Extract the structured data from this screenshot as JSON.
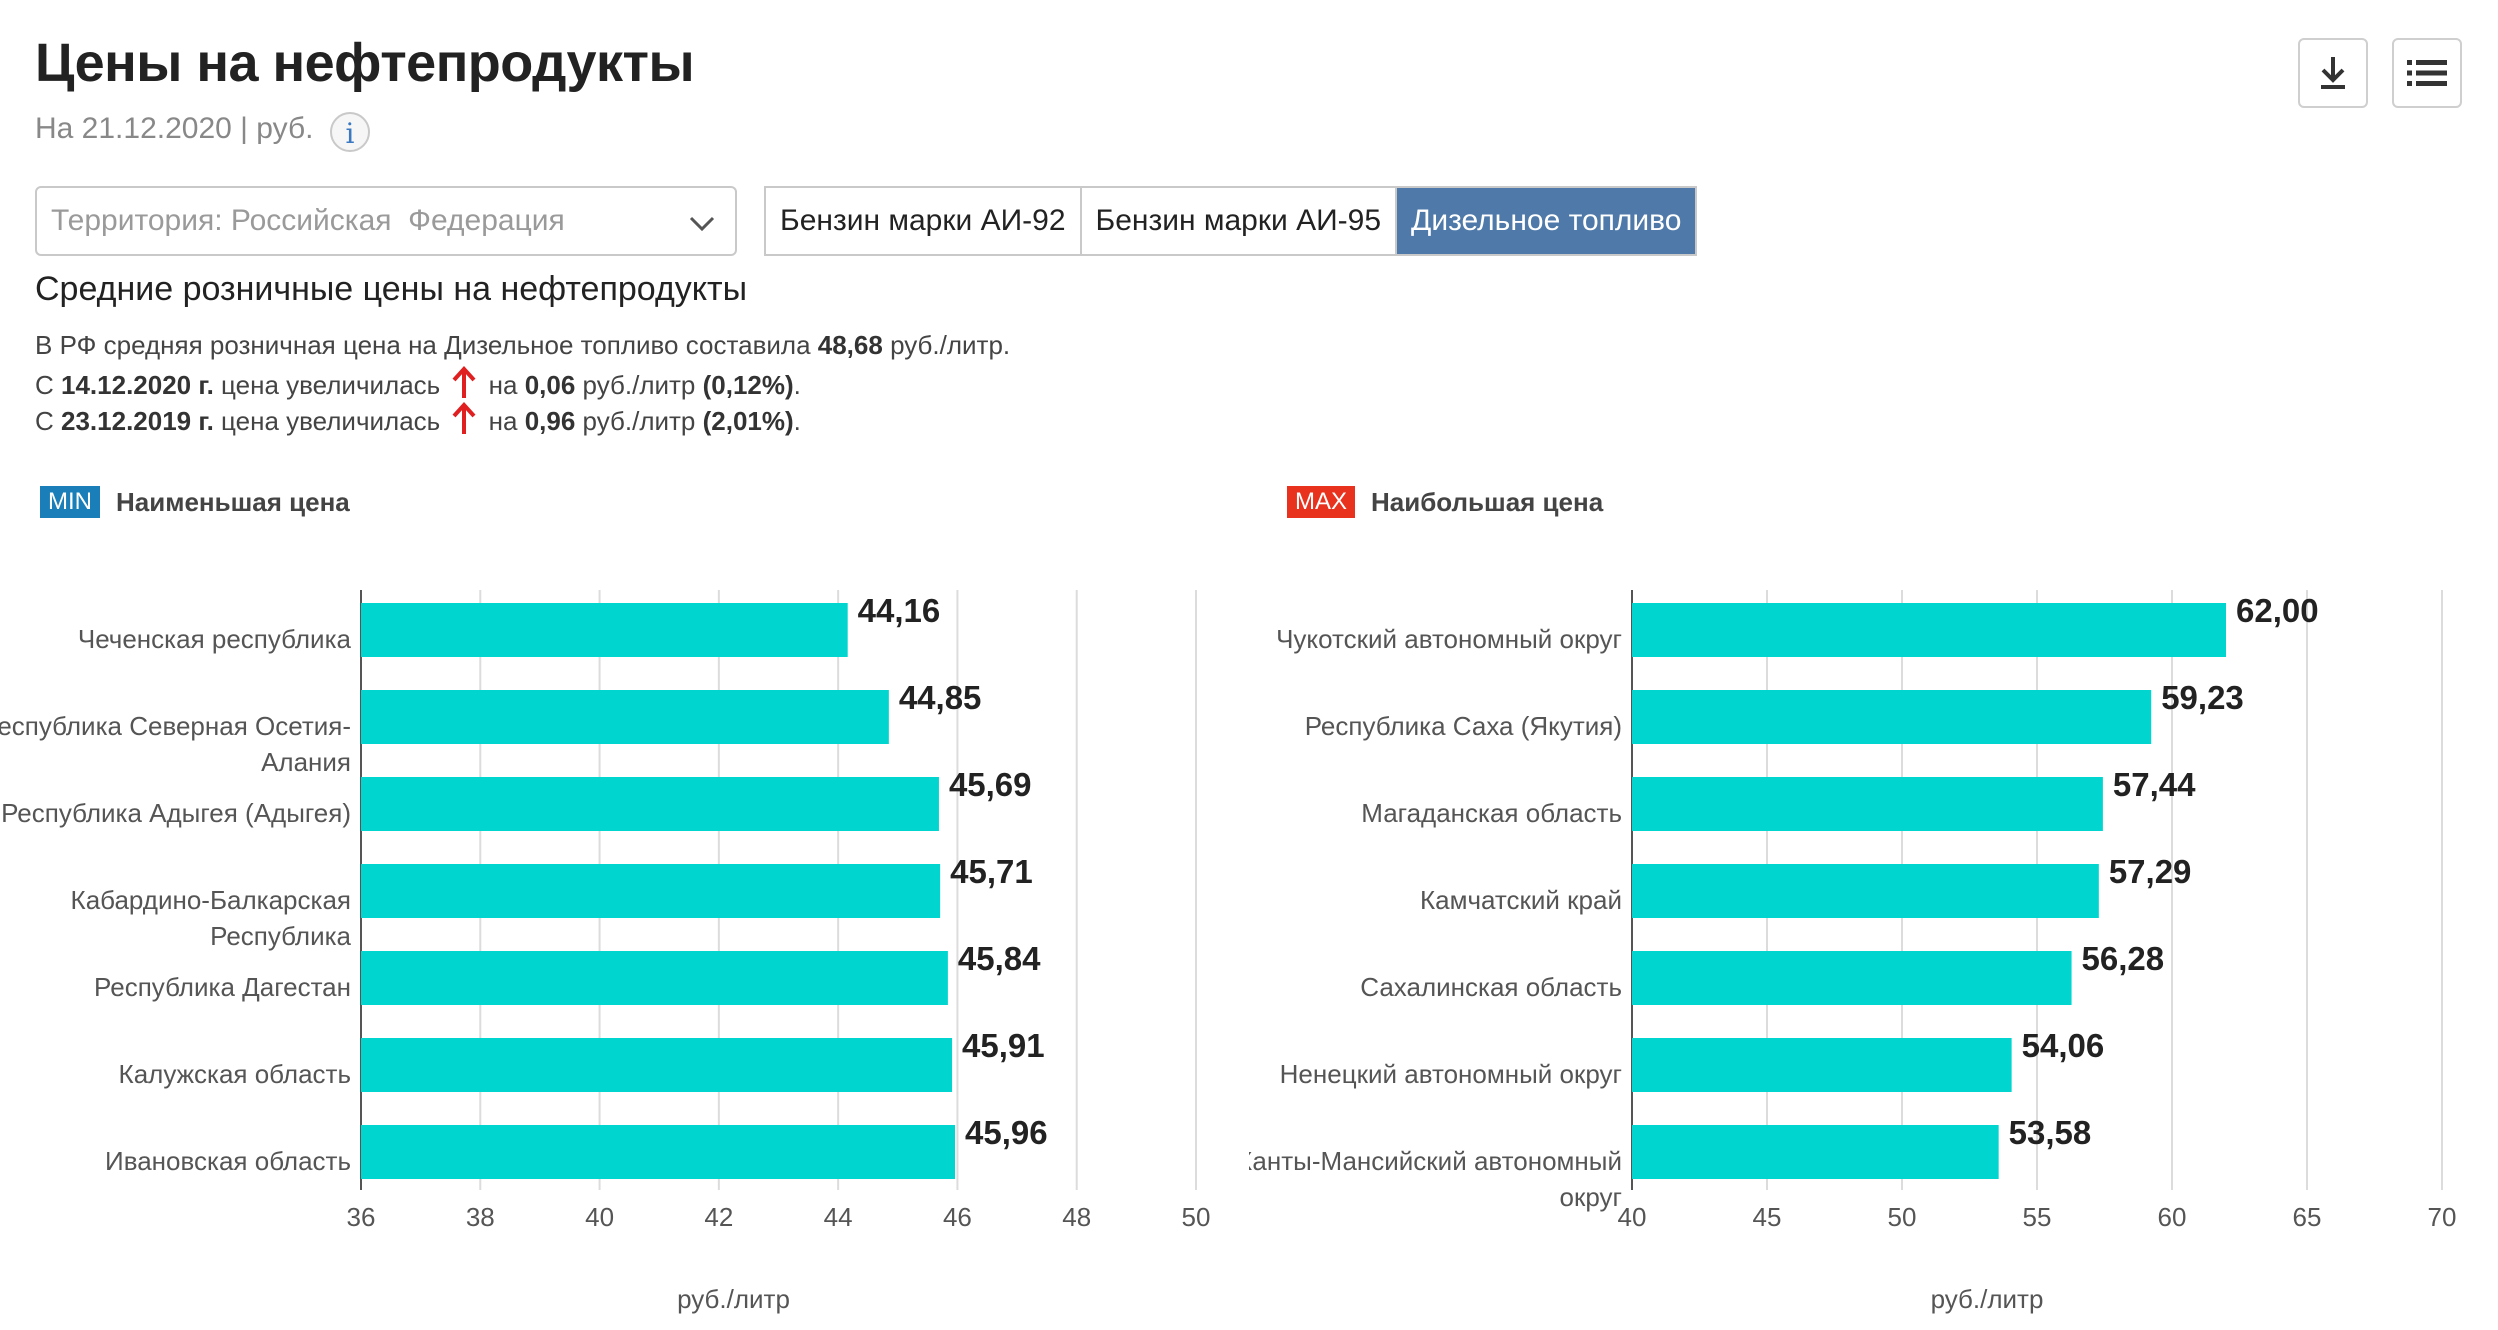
{
  "header": {
    "title": "Цены на нефтепродукты",
    "subtitle": "На 21.12.2020 | руб.",
    "info_icon": "info-icon",
    "download_icon": "download-icon",
    "menu_icon": "list-menu-icon"
  },
  "filters": {
    "territory_value": "Территория: Российская  Федерация",
    "tabs": [
      {
        "label": "Бензин марки АИ-92",
        "active": false
      },
      {
        "label": "Бензин марки АИ-95",
        "active": false
      },
      {
        "label": "Дизельное топливо",
        "active": true
      }
    ]
  },
  "summary": {
    "title": "Средние розничные цены на нефтепродукты",
    "line1": {
      "prefix": "В РФ средняя розничная цена на Дизельное топливо составила ",
      "value": "48,68",
      "suffix": " руб./литр."
    },
    "line2": {
      "prefix": "С ",
      "date": "14.12.2020 г.",
      "mid": " цена увеличилась ",
      "after_arrow": " на ",
      "value": "0,06",
      "unit": " руб./литр ",
      "pct": "(0,12%)",
      "end": "."
    },
    "line3": {
      "prefix": "С ",
      "date": "23.12.2019 г.",
      "mid": " цена увеличилась ",
      "after_arrow": " на ",
      "value": "0,96",
      "unit": " руб./литр ",
      "pct": "(2,01%)",
      "end": "."
    },
    "arrow_color": "#e02020"
  },
  "colors": {
    "bar": "#00d5cf",
    "min_badge": "#1a7fb8",
    "max_badge": "#e8321e",
    "active_tab": "#4e79a8"
  },
  "chart_data": [
    {
      "type": "bar",
      "orientation": "horizontal",
      "badge": "MIN",
      "title": "Наименьшая цена",
      "xlabel": "руб./литр",
      "xlim": [
        36,
        50
      ],
      "xticks": [
        36,
        38,
        40,
        42,
        44,
        46,
        48,
        50
      ],
      "grid": true,
      "categories": [
        [
          "Чеченская республика"
        ],
        [
          "Республика Северная Осетия-",
          "Алания"
        ],
        [
          "Республика Адыгея (Адыгея)"
        ],
        [
          "Кабардино-Балкарская",
          "Республика"
        ],
        [
          "Республика Дагестан"
        ],
        [
          "Калужская область"
        ],
        [
          "Ивановская область"
        ]
      ],
      "values": [
        44.16,
        44.85,
        45.69,
        45.71,
        45.84,
        45.91,
        45.96
      ],
      "value_labels": [
        "44,16",
        "44,85",
        "45,69",
        "45,71",
        "45,84",
        "45,91",
        "45,96"
      ]
    },
    {
      "type": "bar",
      "orientation": "horizontal",
      "badge": "MAX",
      "title": "Наибольшая цена",
      "xlabel": "руб./литр",
      "xlim": [
        40,
        70
      ],
      "xticks": [
        40,
        45,
        50,
        55,
        60,
        65,
        70
      ],
      "grid": true,
      "categories": [
        [
          "Чукотский автономный округ"
        ],
        [
          "Республика Саха (Якутия)"
        ],
        [
          "Магаданская область"
        ],
        [
          "Камчатский край"
        ],
        [
          "Сахалинская область"
        ],
        [
          "Ненецкий автономный округ"
        ],
        [
          "Ханты-Мансийский автономный",
          "округ"
        ]
      ],
      "values": [
        62.0,
        59.23,
        57.44,
        57.29,
        56.28,
        54.06,
        53.58
      ],
      "value_labels": [
        "62,00",
        "59,23",
        "57,44",
        "57,29",
        "56,28",
        "54,06",
        "53,58"
      ]
    }
  ]
}
